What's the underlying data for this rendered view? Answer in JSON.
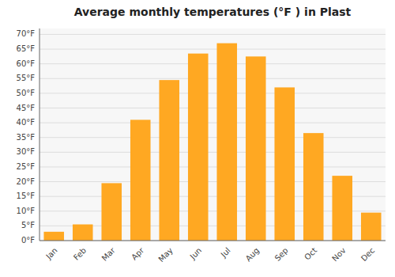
{
  "chart_data": {
    "type": "bar",
    "title": "Average monthly temperatures (°F ) in Plast",
    "categories": [
      "Jan",
      "Feb",
      "Mar",
      "Apr",
      "May",
      "Jun",
      "Jul",
      "Aug",
      "Sep",
      "Oct",
      "Nov",
      "Dec"
    ],
    "values": [
      3,
      5.5,
      19.5,
      41,
      54.5,
      63.5,
      67,
      62.5,
      52,
      36.5,
      22,
      9.5
    ],
    "color": "#FFA822",
    "ylim": [
      0,
      72
    ],
    "yticks": [
      {
        "value": 0,
        "label": "0°F"
      },
      {
        "value": 5,
        "label": "5°F"
      },
      {
        "value": 10,
        "label": "10°F"
      },
      {
        "value": 15,
        "label": "15°F"
      },
      {
        "value": 20,
        "label": "20°F"
      },
      {
        "value": 25,
        "label": "25°F"
      },
      {
        "value": 30,
        "label": "30°F"
      },
      {
        "value": 35,
        "label": "35°F"
      },
      {
        "value": 40,
        "label": "40°F"
      },
      {
        "value": 45,
        "label": "45°F"
      },
      {
        "value": 50,
        "label": "50°F"
      },
      {
        "value": 55,
        "label": "55°F"
      },
      {
        "value": 60,
        "label": "60°F"
      },
      {
        "value": 65,
        "label": "65°F"
      },
      {
        "value": 70,
        "label": "70°F"
      }
    ],
    "grid": true
  }
}
